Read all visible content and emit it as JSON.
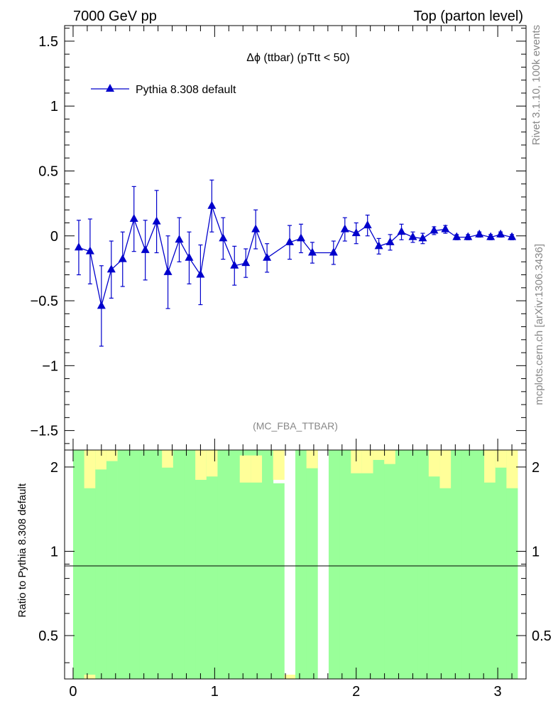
{
  "header": {
    "left": "7000 GeV pp",
    "right": "Top (parton level)"
  },
  "side": {
    "rivet": "Rivet 3.1.10,  100k events",
    "mcplots": "mcplots.cern.ch [arXiv:1306.3436]"
  },
  "chart_data": [
    {
      "type": "line",
      "title": "Δϕ (ttbar) (pTtt < 50)",
      "watermark": "(MC_FBA_TTBAR)",
      "xlim": [
        -0.06,
        3.2
      ],
      "ylim": [
        -1.65,
        1.62
      ],
      "yticks": [
        -1.5,
        -1,
        -0.5,
        0,
        0.5,
        1,
        1.5
      ],
      "ytick_labels": [
        "−1.5",
        "−1",
        "−0.5",
        "0",
        "0.5",
        "1",
        "1.5"
      ],
      "color": "#0000cc",
      "series": [
        {
          "name": "Pythia 8.308 default",
          "marker": "triangle-up",
          "x": [
            0.04,
            0.12,
            0.2,
            0.27,
            0.35,
            0.43,
            0.51,
            0.59,
            0.67,
            0.75,
            0.82,
            0.9,
            0.98,
            1.06,
            1.14,
            1.22,
            1.29,
            1.37,
            1.53,
            1.61,
            1.69,
            1.84,
            1.92,
            2.0,
            2.08,
            2.16,
            2.24,
            2.32,
            2.4,
            2.47,
            2.55,
            2.63,
            2.71,
            2.79,
            2.87,
            2.95,
            3.02,
            3.1
          ],
          "y": [
            -0.09,
            -0.12,
            -0.54,
            -0.26,
            -0.18,
            0.13,
            -0.11,
            0.11,
            -0.28,
            -0.03,
            -0.17,
            -0.3,
            0.23,
            -0.02,
            -0.23,
            -0.21,
            0.05,
            -0.17,
            -0.05,
            -0.02,
            -0.13,
            -0.13,
            0.05,
            0.02,
            0.08,
            -0.08,
            -0.05,
            0.03,
            -0.01,
            -0.02,
            0.04,
            0.05,
            -0.01,
            -0.01,
            0.01,
            -0.01,
            0.01,
            -0.01
          ],
          "yerr": [
            0.21,
            0.25,
            0.31,
            0.22,
            0.21,
            0.25,
            0.23,
            0.24,
            0.28,
            0.17,
            0.2,
            0.23,
            0.2,
            0.16,
            0.15,
            0.11,
            0.15,
            0.11,
            0.13,
            0.11,
            0.08,
            0.09,
            0.09,
            0.08,
            0.08,
            0.06,
            0.06,
            0.06,
            0.04,
            0.04,
            0.03,
            0.03,
            0.02,
            0.02,
            0.02,
            0.02,
            0.02,
            0.02
          ]
        }
      ]
    },
    {
      "type": "bar",
      "ylabel": "Ratio to Pythia 8.308 default",
      "xlim": [
        -0.06,
        3.2
      ],
      "ylim": [
        0.35,
        2.3
      ],
      "log_y": true,
      "reference_line": 1,
      "yticks": [
        0.5,
        1,
        2
      ],
      "ytick_labels": [
        "0.5",
        "1",
        "2"
      ],
      "xticks": [
        0,
        1,
        2,
        3
      ],
      "xtick_labels": [
        "0",
        "1",
        "2",
        "3"
      ],
      "band_colors": {
        "inner": "#99ff99",
        "outer": "#ffff99"
      },
      "bins": {
        "edges": [
          0.0,
          0.0785,
          0.157,
          0.2355,
          0.314,
          0.3925,
          0.471,
          0.5495,
          0.628,
          0.7065,
          0.785,
          0.8635,
          0.942,
          1.0205,
          1.099,
          1.1775,
          1.256,
          1.3345,
          1.413,
          1.4915,
          1.57,
          1.6485,
          1.727,
          1.8055,
          1.884,
          1.9625,
          2.041,
          2.1195,
          2.198,
          2.2765,
          2.355,
          2.4335,
          2.512,
          2.5905,
          2.669,
          2.7475,
          2.826,
          2.9045,
          2.983,
          3.0615,
          3.14
        ],
        "green_high": [
          2.3,
          2.1,
          2.3,
          2.3,
          2.3,
          2.3,
          2.3,
          2.3,
          2.3,
          2.3,
          2.3,
          2.3,
          2.3,
          2.3,
          2.3,
          2.3,
          2.3,
          2.3,
          1.75,
          null,
          2.3,
          2.3,
          null,
          2.3,
          2.3,
          2.3,
          2.3,
          2.3,
          2.3,
          2.3,
          2.3,
          2.3,
          2.3,
          2.3,
          2.3,
          2.3,
          2.3,
          2.3,
          2.3,
          2.3
        ],
        "green_low": [
          0.35,
          0.35,
          0.35,
          0.35,
          0.35,
          0.35,
          0.35,
          0.35,
          0.35,
          0.35,
          0.35,
          0.35,
          0.35,
          0.35,
          0.35,
          0.35,
          0.35,
          0.35,
          0.35,
          null,
          0.35,
          0.35,
          null,
          0.35,
          0.35,
          0.35,
          0.35,
          0.35,
          0.35,
          0.35,
          0.35,
          0.35,
          0.35,
          0.35,
          0.35,
          0.35,
          0.35,
          0.35,
          0.35,
          0.35
        ],
        "yellow_top": [
          null,
          2.3,
          2.3,
          2.3,
          null,
          null,
          null,
          null,
          2.3,
          null,
          null,
          2.3,
          2.3,
          null,
          null,
          2.2,
          2.2,
          null,
          2.3,
          null,
          null,
          2.3,
          null,
          null,
          null,
          2.3,
          2.3,
          2.3,
          2.3,
          null,
          null,
          null,
          2.3,
          2.3,
          null,
          null,
          null,
          2.3,
          2.3,
          2.3
        ],
        "yellow_bottom": [
          null,
          1.68,
          1.96,
          2.1,
          null,
          null,
          null,
          null,
          1.99,
          null,
          null,
          1.8,
          1.85,
          null,
          null,
          1.76,
          1.76,
          null,
          1.8,
          null,
          null,
          1.98,
          null,
          null,
          null,
          1.9,
          1.9,
          2.12,
          2.05,
          null,
          null,
          null,
          1.85,
          1.68,
          null,
          null,
          null,
          1.76,
          1.99,
          1.68
        ],
        "bottom_yellow_bins": [
          1,
          19
        ]
      }
    }
  ]
}
